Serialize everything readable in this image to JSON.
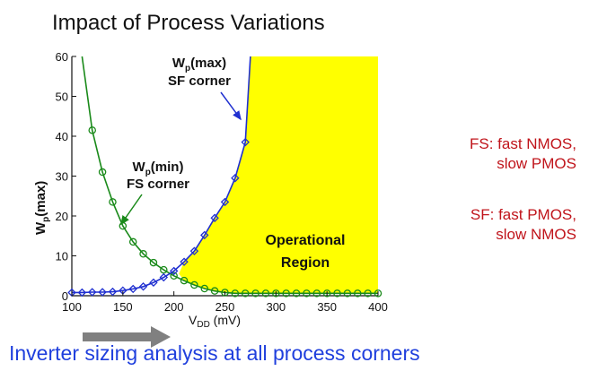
{
  "slide": {
    "title": "Impact of Process Variations",
    "caption": "Inverter sizing analysis at all process corners"
  },
  "notes": [
    {
      "lines": [
        "FS: fast NMOS,",
        "slow PMOS"
      ]
    },
    {
      "lines": [
        "SF: fast PMOS,",
        "slow NMOS"
      ]
    }
  ],
  "colors": {
    "fs_curve": "#1a8a1a",
    "sf_curve": "#1f2fd0",
    "region": "#ffff00",
    "notes": "#c0141b",
    "caption": "#1f3fdd",
    "arrow": "#808080"
  },
  "chart_data": {
    "type": "line",
    "xlabel_main": "V",
    "xlabel_sub": "DD",
    "xlabel_unit": " (mV)",
    "ylabel_main": "W",
    "ylabel_sub": "p",
    "ylabel_unit": "(max)",
    "xlim": [
      100,
      400
    ],
    "ylim": [
      0,
      60
    ],
    "x_ticks": [
      100,
      150,
      200,
      250,
      300,
      350,
      400
    ],
    "y_ticks": [
      0,
      10,
      20,
      30,
      40,
      50,
      60
    ],
    "series": [
      {
        "id": "fs",
        "x": [
          110,
          120,
          130,
          140,
          150,
          160,
          170,
          180,
          190,
          200,
          210,
          220,
          230,
          240,
          250,
          260,
          270,
          280,
          290,
          300,
          310,
          320,
          330,
          340,
          350,
          360,
          370,
          380,
          390,
          400
        ],
        "y": [
          60,
          41.5,
          31,
          23.5,
          17.5,
          13.5,
          10.5,
          8.3,
          6.5,
          5,
          3.8,
          2.7,
          1.8,
          1.2,
          0.8,
          0.6,
          0.6,
          0.6,
          0.6,
          0.6,
          0.6,
          0.6,
          0.6,
          0.6,
          0.6,
          0.6,
          0.6,
          0.6,
          0.6,
          0.6
        ]
      },
      {
        "id": "sf",
        "x": [
          100,
          110,
          120,
          130,
          140,
          150,
          160,
          170,
          180,
          190,
          200,
          210,
          220,
          230,
          240,
          250,
          260,
          270,
          275
        ],
        "y": [
          0.8,
          0.8,
          0.9,
          0.9,
          1.0,
          1.3,
          1.7,
          2.3,
          3.3,
          4.6,
          6.2,
          8.5,
          11.2,
          15.2,
          19.5,
          23.5,
          29.5,
          38.5,
          60
        ]
      }
    ],
    "region": {
      "label_lines": [
        "Operational",
        "Region"
      ]
    },
    "annotations": [
      {
        "id": "sf-label",
        "main": "W",
        "sub": "p",
        "rest": "(max)",
        "line2": "SF corner"
      },
      {
        "id": "fs-label",
        "main": "W",
        "sub": "p",
        "rest": "(min)",
        "line2": "FS corner"
      }
    ]
  }
}
